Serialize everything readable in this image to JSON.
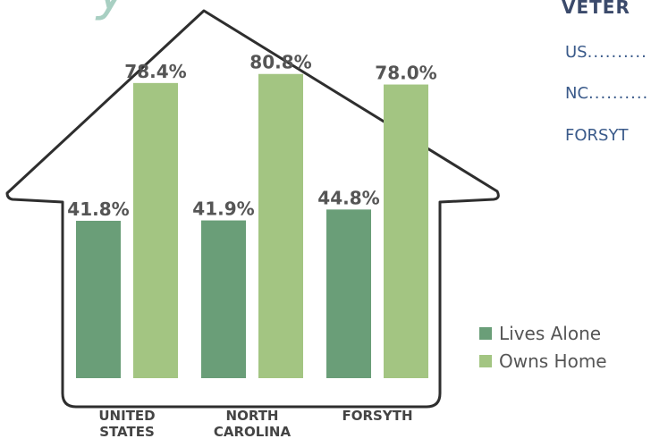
{
  "chart_data": {
    "type": "bar",
    "title": "y",
    "categories": [
      "UNITED STATES",
      "NORTH CAROLINA",
      "FORSYTH"
    ],
    "series": [
      {
        "name": "Lives Alone",
        "color": "#6a9e78",
        "values": [
          41.8,
          41.9,
          44.8
        ],
        "value_labels": [
          "41.8%",
          "41.9%",
          "44.8%"
        ]
      },
      {
        "name": "Owns Home",
        "color": "#a3c582",
        "values": [
          78.4,
          80.8,
          78.0
        ],
        "value_labels": [
          "78.4%",
          "80.8%",
          "78.0%"
        ]
      }
    ],
    "ylim": [
      0,
      90
    ],
    "legend": "lower right"
  },
  "side_panel": {
    "heading": "VETER",
    "rows": [
      "US",
      "NC",
      "FORSYT"
    ]
  }
}
